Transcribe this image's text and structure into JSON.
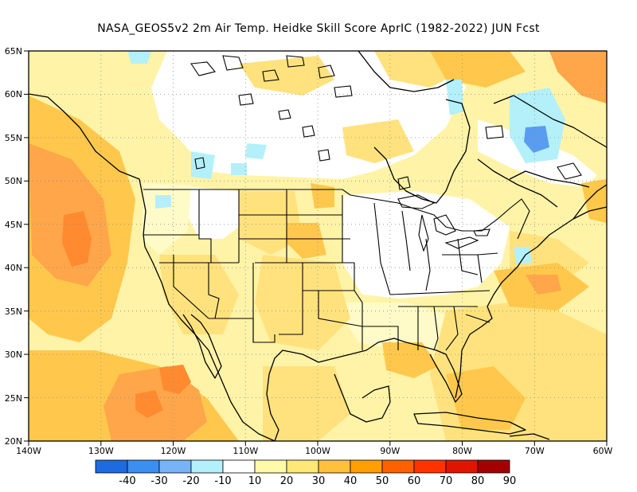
{
  "title": "NASA_GEOS5v2  2m Air Temp. Heidke Skill Score AprIC (1982-2022) JUN Fcst",
  "map": {
    "lat_labels": [
      "65N",
      "60N",
      "55N",
      "50N",
      "45N",
      "40N",
      "35N",
      "30N",
      "25N",
      "20N"
    ],
    "lon_labels": [
      "140W",
      "130W",
      "120W",
      "110W",
      "100W",
      "90W",
      "80W",
      "70W",
      "60W"
    ],
    "lat_range": [
      20,
      65
    ],
    "lon_range": [
      -140,
      -60
    ],
    "grid": true
  },
  "colorbar": {
    "labels": [
      "-40",
      "-30",
      "-20",
      "-10",
      "10",
      "20",
      "30",
      "40",
      "50",
      "60",
      "70",
      "80",
      "90"
    ],
    "colors": [
      "#1e6ae0",
      "#3c8ef0",
      "#78b4f5",
      "#b4f0fa",
      "#ffffff",
      "#fffaaa",
      "#ffe878",
      "#ffc03c",
      "#ffa000",
      "#ff6000",
      "#ff3200",
      "#e11400",
      "#a50000"
    ]
  },
  "colors": {
    "land_base": "#fff8b8",
    "ocean_base": "#ffe27e",
    "strong": "#ffa64a",
    "stronger": "#ff8a30",
    "cool": "#b4f0fa",
    "cold": "#5a9cf0"
  }
}
